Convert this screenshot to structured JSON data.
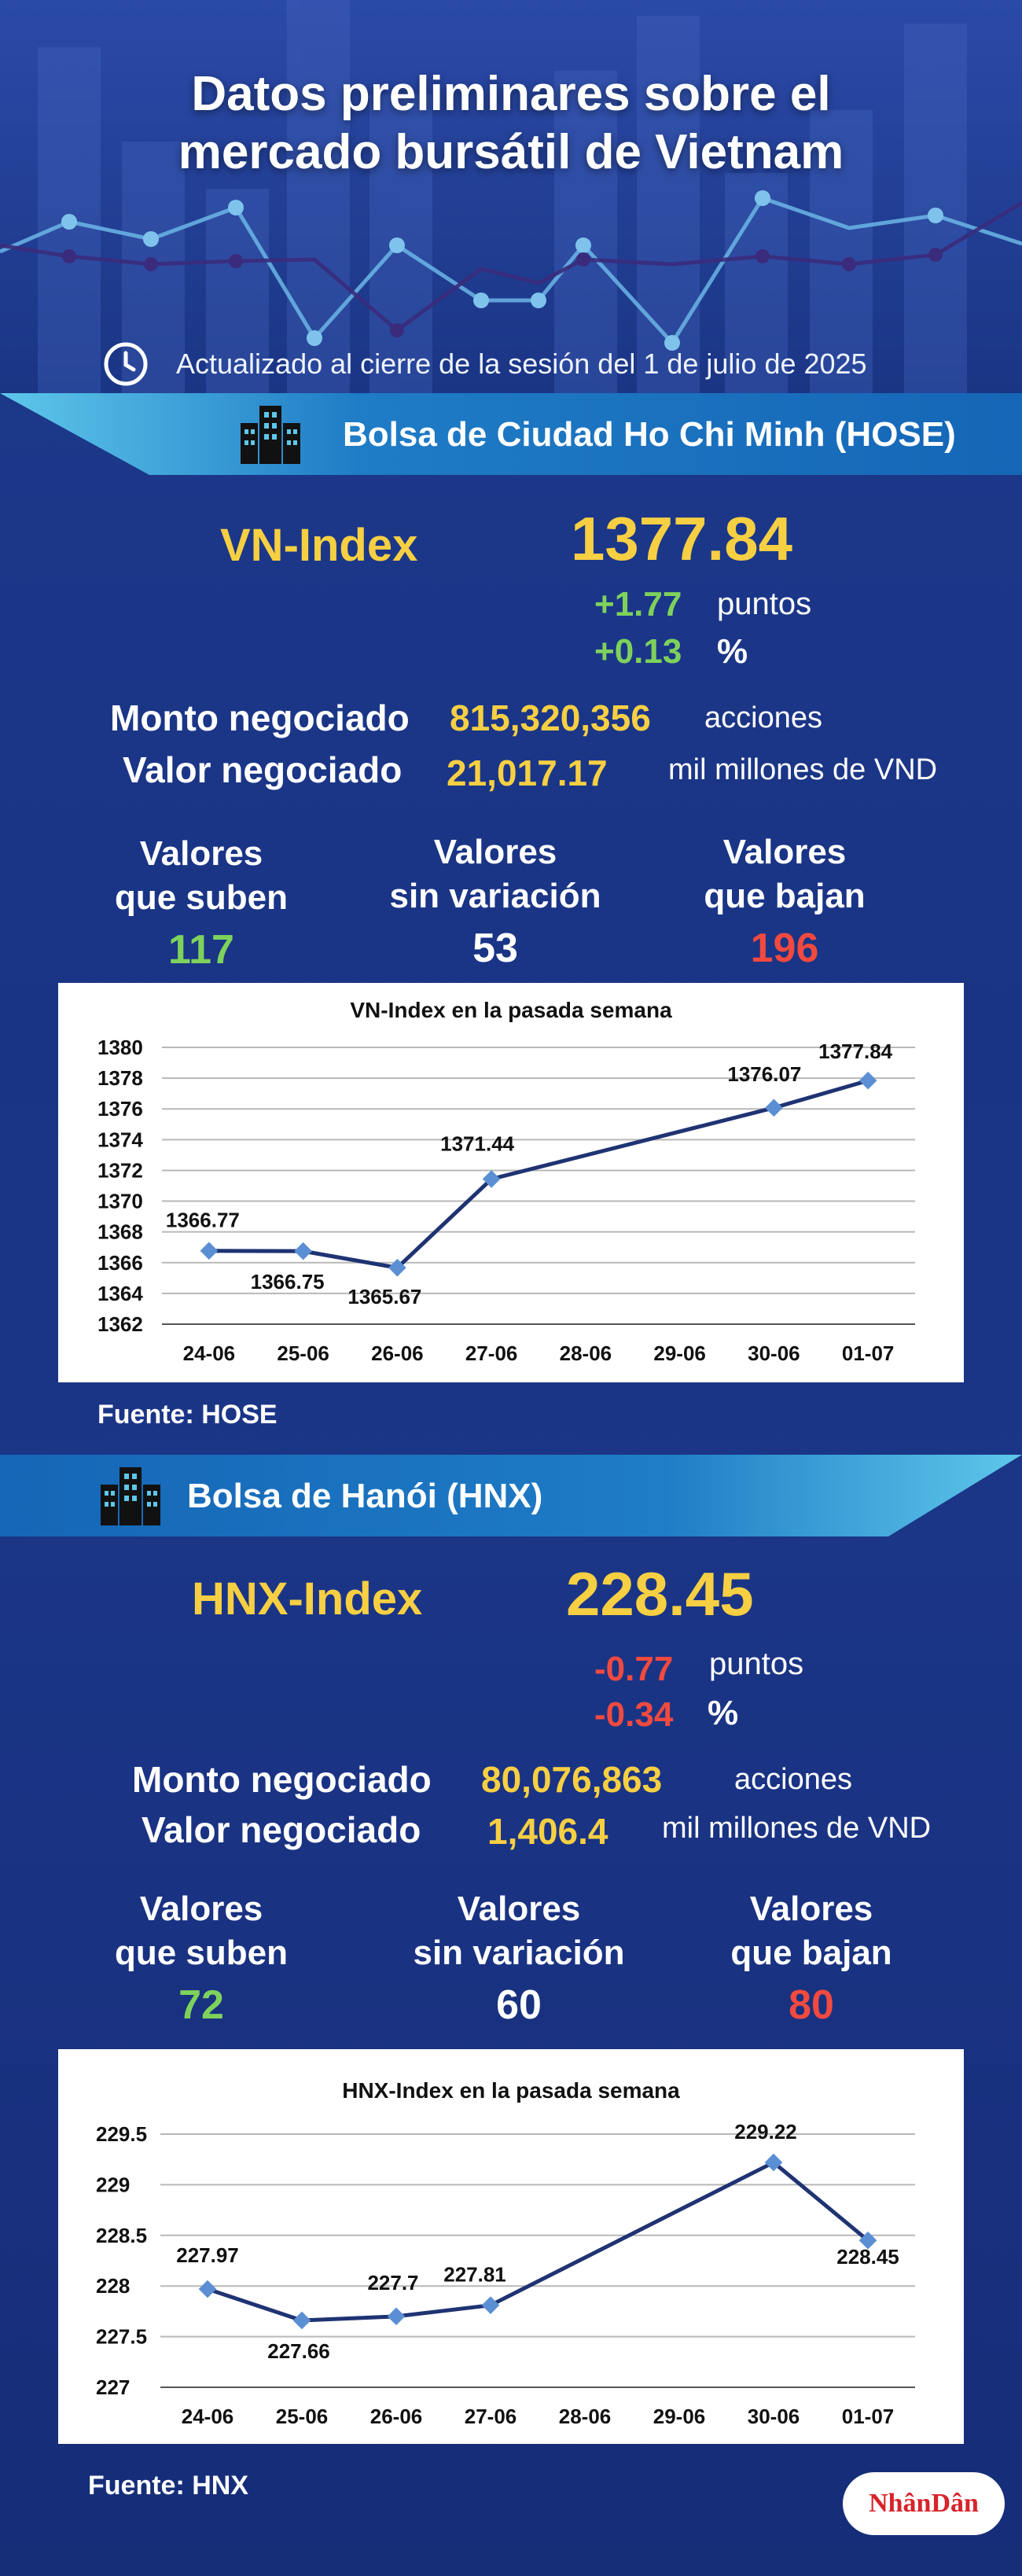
{
  "header": {
    "title_line1": "Datos preliminares sobre el",
    "title_line2": "mercado bursátil de Vietnam",
    "updated": "Actualizado al cierre de la sesión del 1 de julio de 2025"
  },
  "hose": {
    "banner": "Bolsa de Ciudad Ho Chi Minh (HOSE)",
    "index_name": "VN-Index",
    "index_value": "1377.84",
    "change_points": "+1.77",
    "change_points_unit": "puntos",
    "change_percent": "+0.13",
    "change_percent_unit": "%",
    "volume_label": "Monto negociado",
    "volume_value": "815,320,356",
    "volume_unit": "acciones",
    "value_label": "Valor negociado",
    "value_value": "21,017.17",
    "value_unit": "mil millones de VND",
    "advancers_label1": "Valores",
    "advancers_label2": "que suben",
    "advancers": "117",
    "unchanged_label1": "Valores",
    "unchanged_label2": "sin variación",
    "unchanged": "53",
    "decliners_label1": "Valores",
    "decliners_label2": "que bajan",
    "decliners": "196",
    "source": "Fuente: HOSE"
  },
  "hnx": {
    "banner": "Bolsa de Hanói (HNX)",
    "index_name": "HNX-Index",
    "index_value": "228.45",
    "change_points": "-0.77",
    "change_points_unit": "puntos",
    "change_percent": "-0.34",
    "change_percent_unit": "%",
    "volume_label": "Monto negociado",
    "volume_value": "80,076,863",
    "volume_unit": "acciones",
    "value_label": "Valor negociado",
    "value_value": "1,406.4",
    "value_unit": "mil millones de VND",
    "advancers_label1": "Valores",
    "advancers_label2": "que suben",
    "advancers": "72",
    "unchanged_label1": "Valores",
    "unchanged_label2": "sin variación",
    "unchanged": "60",
    "decliners_label1": "Valores",
    "decliners_label2": "que bajan",
    "decliners": "80",
    "source": "Fuente:  HNX"
  },
  "logo": "NhânDân",
  "colors": {
    "accent_yellow": "#f7cf43",
    "up_green": "#7ed25c",
    "down_red": "#f24a3f",
    "line": "#1f3373",
    "marker": "#5b8fd4"
  },
  "chart_data": [
    {
      "type": "line",
      "title": "VN-Index en la pasada semana",
      "categories": [
        "24-06",
        "25-06",
        "26-06",
        "27-06",
        "28-06",
        "29-06",
        "30-06",
        "01-07"
      ],
      "points": [
        {
          "x": "24-06",
          "y": 1366.77,
          "label": "1366.77"
        },
        {
          "x": "25-06",
          "y": 1366.75,
          "label": "1366.75"
        },
        {
          "x": "26-06",
          "y": 1365.67,
          "label": "1365.67"
        },
        {
          "x": "27-06",
          "y": 1371.44,
          "label": "1371.44"
        },
        {
          "x": "30-06",
          "y": 1376.07,
          "label": "1376.07"
        },
        {
          "x": "01-07",
          "y": 1377.84,
          "label": "1377.84"
        }
      ],
      "ylim": [
        1362,
        1380
      ],
      "yticks": [
        "1362",
        "1364",
        "1366",
        "1368",
        "1370",
        "1372",
        "1374",
        "1376",
        "1378",
        "1380"
      ],
      "grid": true
    },
    {
      "type": "line",
      "title": "HNX-Index en la pasada semana",
      "categories": [
        "24-06",
        "25-06",
        "26-06",
        "27-06",
        "28-06",
        "29-06",
        "30-06",
        "01-07"
      ],
      "points": [
        {
          "x": "24-06",
          "y": 227.97,
          "label": "227.97"
        },
        {
          "x": "25-06",
          "y": 227.66,
          "label": "227.66"
        },
        {
          "x": "26-06",
          "y": 227.7,
          "label": "227.7"
        },
        {
          "x": "27-06",
          "y": 227.81,
          "label": "227.81"
        },
        {
          "x": "30-06",
          "y": 229.22,
          "label": "229.22"
        },
        {
          "x": "01-07",
          "y": 228.45,
          "label": "228.45"
        }
      ],
      "ylim": [
        227,
        229.5
      ],
      "yticks": [
        "227",
        "227.5",
        "228",
        "228.5",
        "229",
        "229.5"
      ],
      "grid": true
    }
  ]
}
